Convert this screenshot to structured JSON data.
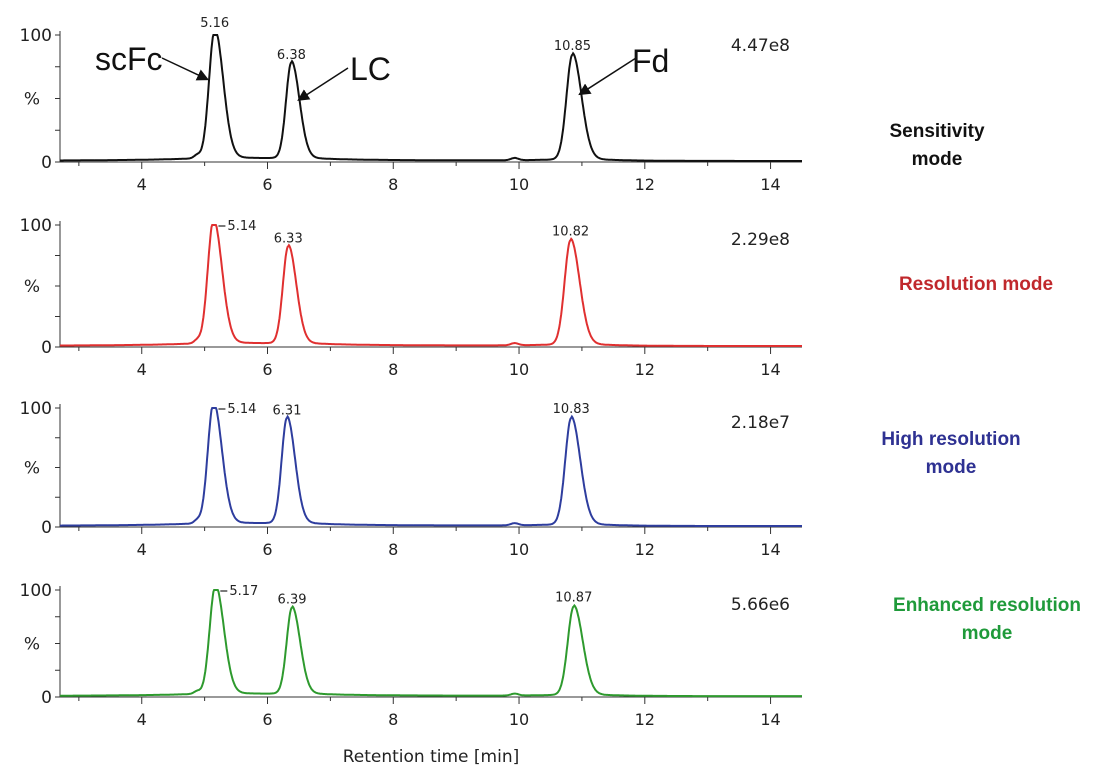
{
  "chart_data": {
    "type": "line",
    "xlabel": "Retention time [min]",
    "ylabel": "%",
    "xlim": [
      2.7,
      14.5
    ],
    "ylim": [
      0,
      100
    ],
    "x_ticks": [
      "4",
      "6",
      "8",
      "10",
      "12",
      "14"
    ],
    "y_ticks": [
      "0",
      "100"
    ],
    "panels": [
      {
        "name": "Sensitivity mode",
        "color": "#111111",
        "intensity": "4.47e8",
        "peaks": [
          {
            "x": 5.16,
            "y": 100,
            "label": "5.16"
          },
          {
            "x": 6.38,
            "y": 75,
            "label": "6.38"
          },
          {
            "x": 10.85,
            "y": 82,
            "label": "10.85"
          }
        ]
      },
      {
        "name": "Resolution mode",
        "color": "#e03030",
        "intensity": "2.29e8",
        "peaks": [
          {
            "x": 5.14,
            "y": 100,
            "label": "5.14"
          },
          {
            "x": 6.33,
            "y": 79,
            "label": "6.33"
          },
          {
            "x": 10.82,
            "y": 85,
            "label": "10.82"
          }
        ]
      },
      {
        "name": "High resolution mode",
        "color": "#2e3d9e",
        "intensity": "2.18e7",
        "peaks": [
          {
            "x": 5.14,
            "y": 100,
            "label": "5.14"
          },
          {
            "x": 6.31,
            "y": 88,
            "label": "6.31"
          },
          {
            "x": 10.83,
            "y": 89,
            "label": "10.83"
          }
        ]
      },
      {
        "name": "Enhanced resolution mode",
        "color": "#2e9a2e",
        "intensity": "5.66e6",
        "peaks": [
          {
            "x": 5.17,
            "y": 100,
            "label": "5.17"
          },
          {
            "x": 6.39,
            "y": 80,
            "label": "6.39"
          },
          {
            "x": 10.87,
            "y": 82,
            "label": "10.87"
          }
        ]
      }
    ],
    "annotations": [
      "scFc",
      "LC",
      "Fd"
    ]
  },
  "mode_labels": [
    {
      "line1": "Sensitivity mode",
      "line2": "",
      "color": "#111111"
    },
    {
      "line1": "Resolution mode",
      "line2": "",
      "color": "#c0282c"
    },
    {
      "line1": "High resolution",
      "line2": "mode",
      "color": "#2e3192"
    },
    {
      "line1": "Enhanced resolution",
      "line2": "mode",
      "color": "#1f9a3a"
    }
  ]
}
